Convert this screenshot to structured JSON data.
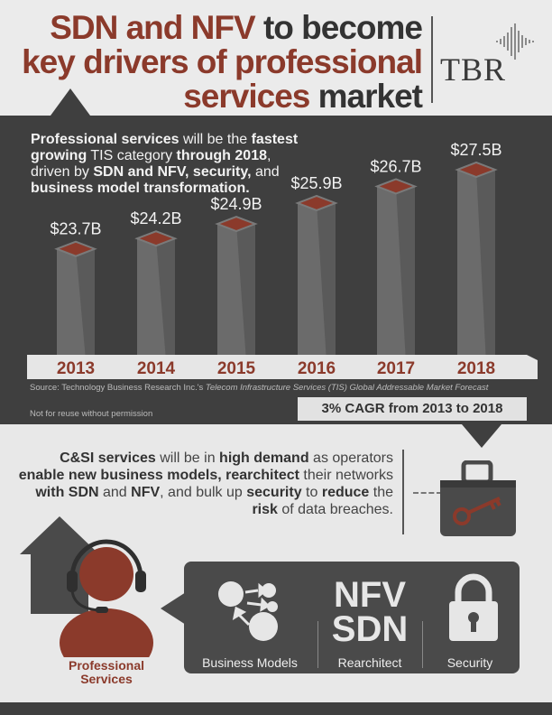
{
  "header": {
    "title_part1_red": "SDN and NFV",
    "title_part1_dark": " to become",
    "title_part2_red": "key drivers of professional",
    "title_part3_red": "services",
    "title_part3_dark": " market",
    "logo": "TBR"
  },
  "intro": {
    "p1": "Professional services",
    "p2": " will be the ",
    "p3": "fastest growing",
    "p4": " TIS category ",
    "p5": "through 2018",
    "p6": ", driven by ",
    "p7": "SDN and NFV, security,",
    "p8": " and ",
    "p9": "business model transformation."
  },
  "chart_data": {
    "type": "bar",
    "categories": [
      "2013",
      "2014",
      "2015",
      "2016",
      "2017",
      "2018"
    ],
    "values": [
      23.7,
      24.2,
      24.9,
      25.9,
      26.7,
      27.5
    ],
    "value_labels": [
      "$23.7B",
      "$24.2B",
      "$24.9B",
      "$25.9B",
      "$26.7B",
      "$27.5B"
    ],
    "title": "",
    "xlabel": "",
    "ylabel": "",
    "colors": {
      "bar": "#6b6b6b",
      "cap": "#8b3a2b",
      "axis_band": "#e6e6e6"
    }
  },
  "source": {
    "prefix": "Source: Technology Business Research Inc.'s ",
    "italic": "Telecom Infrastructure Services (TIS) Global Addressable Market Forecast",
    "reuse": "Not for reuse without permission"
  },
  "cagr": "3% CAGR from 2013 to 2018",
  "csi": {
    "t1": "C&SI services",
    "t2": " will be in ",
    "t3": "high demand",
    "t4": " as operators ",
    "t5": "enable new business models, rearchitect",
    "t6": " their networks ",
    "t7": "with SDN",
    "t8": " and ",
    "t9": "NFV",
    "t10": ", and bulk up ",
    "t11": "security",
    "t12": " to ",
    "t13": "reduce",
    "t14": " the ",
    "t15": "risk",
    "t16": " of data breaches."
  },
  "bottom": {
    "professional_line1": "Professional",
    "professional_line2": "Services",
    "nfv": "NFV",
    "sdn": "SDN",
    "services": [
      "Business Models",
      "Rearchitect",
      "Security"
    ]
  },
  "icons": [
    "briefcase-key-icon",
    "house-icon",
    "headset-person-icon",
    "network-nodes-icon",
    "padlock-icon"
  ],
  "colors": {
    "accent": "#8b3a2b",
    "dark": "#3f3f3f"
  }
}
